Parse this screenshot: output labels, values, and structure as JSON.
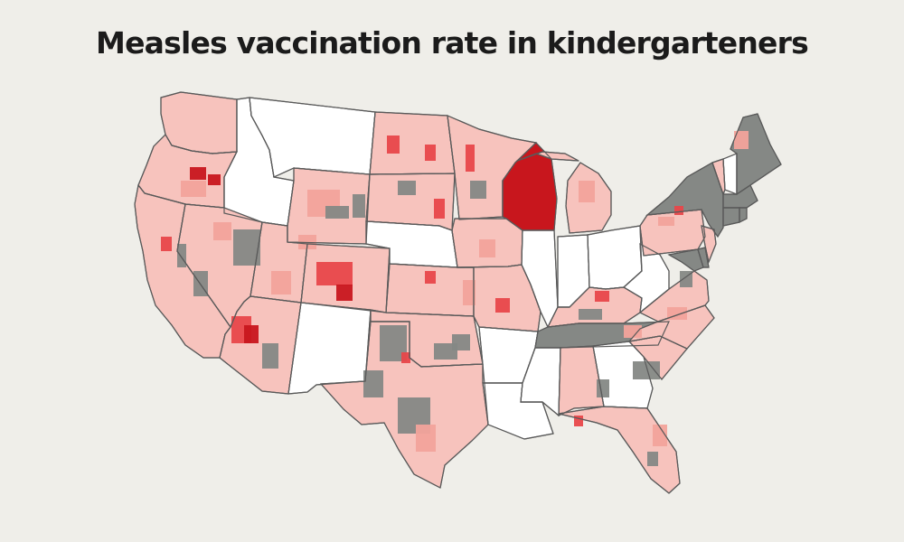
{
  "title": "Measles vaccination rate in kindergarteners",
  "colors": {
    "background": "#efeee9",
    "no_data": "#ffffff",
    "gray": "#858885",
    "light_pink": "#f7c3bd",
    "pink": "#f2a39b",
    "red": "#e8474a",
    "dark_red": "#c8161d",
    "boundary": "#5a5a5a"
  },
  "states": [
    {
      "name": "Washington",
      "fill": "light_pink"
    },
    {
      "name": "Oregon",
      "fill": "light_pink"
    },
    {
      "name": "California",
      "fill": "light_pink"
    },
    {
      "name": "Idaho",
      "fill": "no_data"
    },
    {
      "name": "Nevada",
      "fill": "light_pink"
    },
    {
      "name": "Utah",
      "fill": "light_pink"
    },
    {
      "name": "Arizona",
      "fill": "light_pink"
    },
    {
      "name": "Montana",
      "fill": "no_data"
    },
    {
      "name": "Wyoming",
      "fill": "light_pink"
    },
    {
      "name": "Colorado",
      "fill": "light_pink"
    },
    {
      "name": "New Mexico",
      "fill": "no_data"
    },
    {
      "name": "North Dakota",
      "fill": "light_pink"
    },
    {
      "name": "South Dakota",
      "fill": "light_pink"
    },
    {
      "name": "Nebraska",
      "fill": "no_data"
    },
    {
      "name": "Kansas",
      "fill": "light_pink"
    },
    {
      "name": "Oklahoma",
      "fill": "light_pink"
    },
    {
      "name": "Texas",
      "fill": "light_pink"
    },
    {
      "name": "Minnesota",
      "fill": "light_pink"
    },
    {
      "name": "Iowa",
      "fill": "light_pink"
    },
    {
      "name": "Missouri",
      "fill": "light_pink"
    },
    {
      "name": "Arkansas",
      "fill": "no_data"
    },
    {
      "name": "Louisiana",
      "fill": "no_data"
    },
    {
      "name": "Wisconsin",
      "fill": "dark_red"
    },
    {
      "name": "Illinois",
      "fill": "no_data"
    },
    {
      "name": "Michigan",
      "fill": "light_pink"
    },
    {
      "name": "Indiana",
      "fill": "no_data"
    },
    {
      "name": "Ohio",
      "fill": "no_data"
    },
    {
      "name": "Kentucky",
      "fill": "light_pink"
    },
    {
      "name": "Tennessee",
      "fill": "gray"
    },
    {
      "name": "Mississippi",
      "fill": "no_data"
    },
    {
      "name": "Alabama",
      "fill": "light_pink"
    },
    {
      "name": "Georgia",
      "fill": "no_data"
    },
    {
      "name": "Florida",
      "fill": "light_pink"
    },
    {
      "name": "South Carolina",
      "fill": "light_pink"
    },
    {
      "name": "North Carolina",
      "fill": "light_pink"
    },
    {
      "name": "Virginia",
      "fill": "light_pink"
    },
    {
      "name": "West Virginia",
      "fill": "no_data"
    },
    {
      "name": "Pennsylvania",
      "fill": "light_pink"
    },
    {
      "name": "New York",
      "fill": "gray"
    },
    {
      "name": "Maryland",
      "fill": "gray"
    },
    {
      "name": "Delaware",
      "fill": "gray"
    },
    {
      "name": "New Jersey",
      "fill": "light_pink"
    },
    {
      "name": "Vermont",
      "fill": "light_pink"
    },
    {
      "name": "New Hampshire",
      "fill": "no_data"
    },
    {
      "name": "Maine",
      "fill": "gray"
    },
    {
      "name": "Massachusetts",
      "fill": "gray"
    },
    {
      "name": "Connecticut",
      "fill": "gray"
    },
    {
      "name": "Rhode Island",
      "fill": "gray"
    }
  ]
}
